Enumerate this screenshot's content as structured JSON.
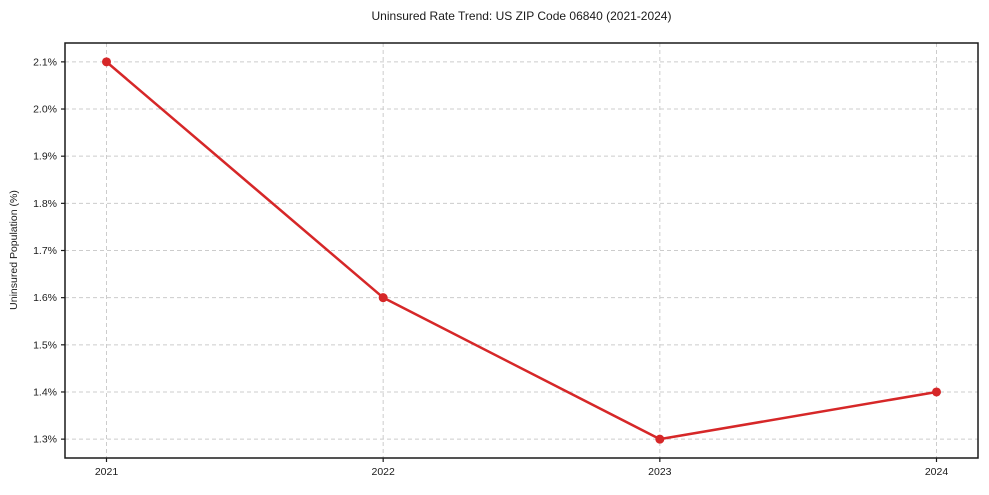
{
  "chart_data": {
    "type": "line",
    "title": "Uninsured Rate Trend: US ZIP Code 06840 (2021-2024)",
    "xlabel": "",
    "ylabel": "Uninsured Population (%)",
    "series_name": "Uninsured rate",
    "x": [
      2021,
      2022,
      2023,
      2024
    ],
    "values": [
      2.1,
      1.6,
      1.3,
      1.4
    ],
    "x_tick_labels": [
      "2021",
      "2022",
      "2023",
      "2024"
    ],
    "y_ticks": [
      1.3,
      1.4,
      1.5,
      1.6,
      1.7,
      1.8,
      1.9,
      2.0,
      2.1
    ],
    "y_tick_labels": [
      "1.3%",
      "1.4%",
      "1.5%",
      "1.6%",
      "1.7%",
      "1.8%",
      "1.9%",
      "2.0%",
      "2.1%"
    ],
    "xlim": [
      2020.85,
      2024.15
    ],
    "ylim": [
      1.26,
      2.14
    ],
    "grid": true,
    "grid_style": "dashed",
    "legend": "none",
    "marker": "circle",
    "colors": {
      "line": "#d62728",
      "grid": "#cccccc",
      "spine": "#1a1a1a",
      "text": "#1a1a1a",
      "background": "#ffffff"
    }
  }
}
